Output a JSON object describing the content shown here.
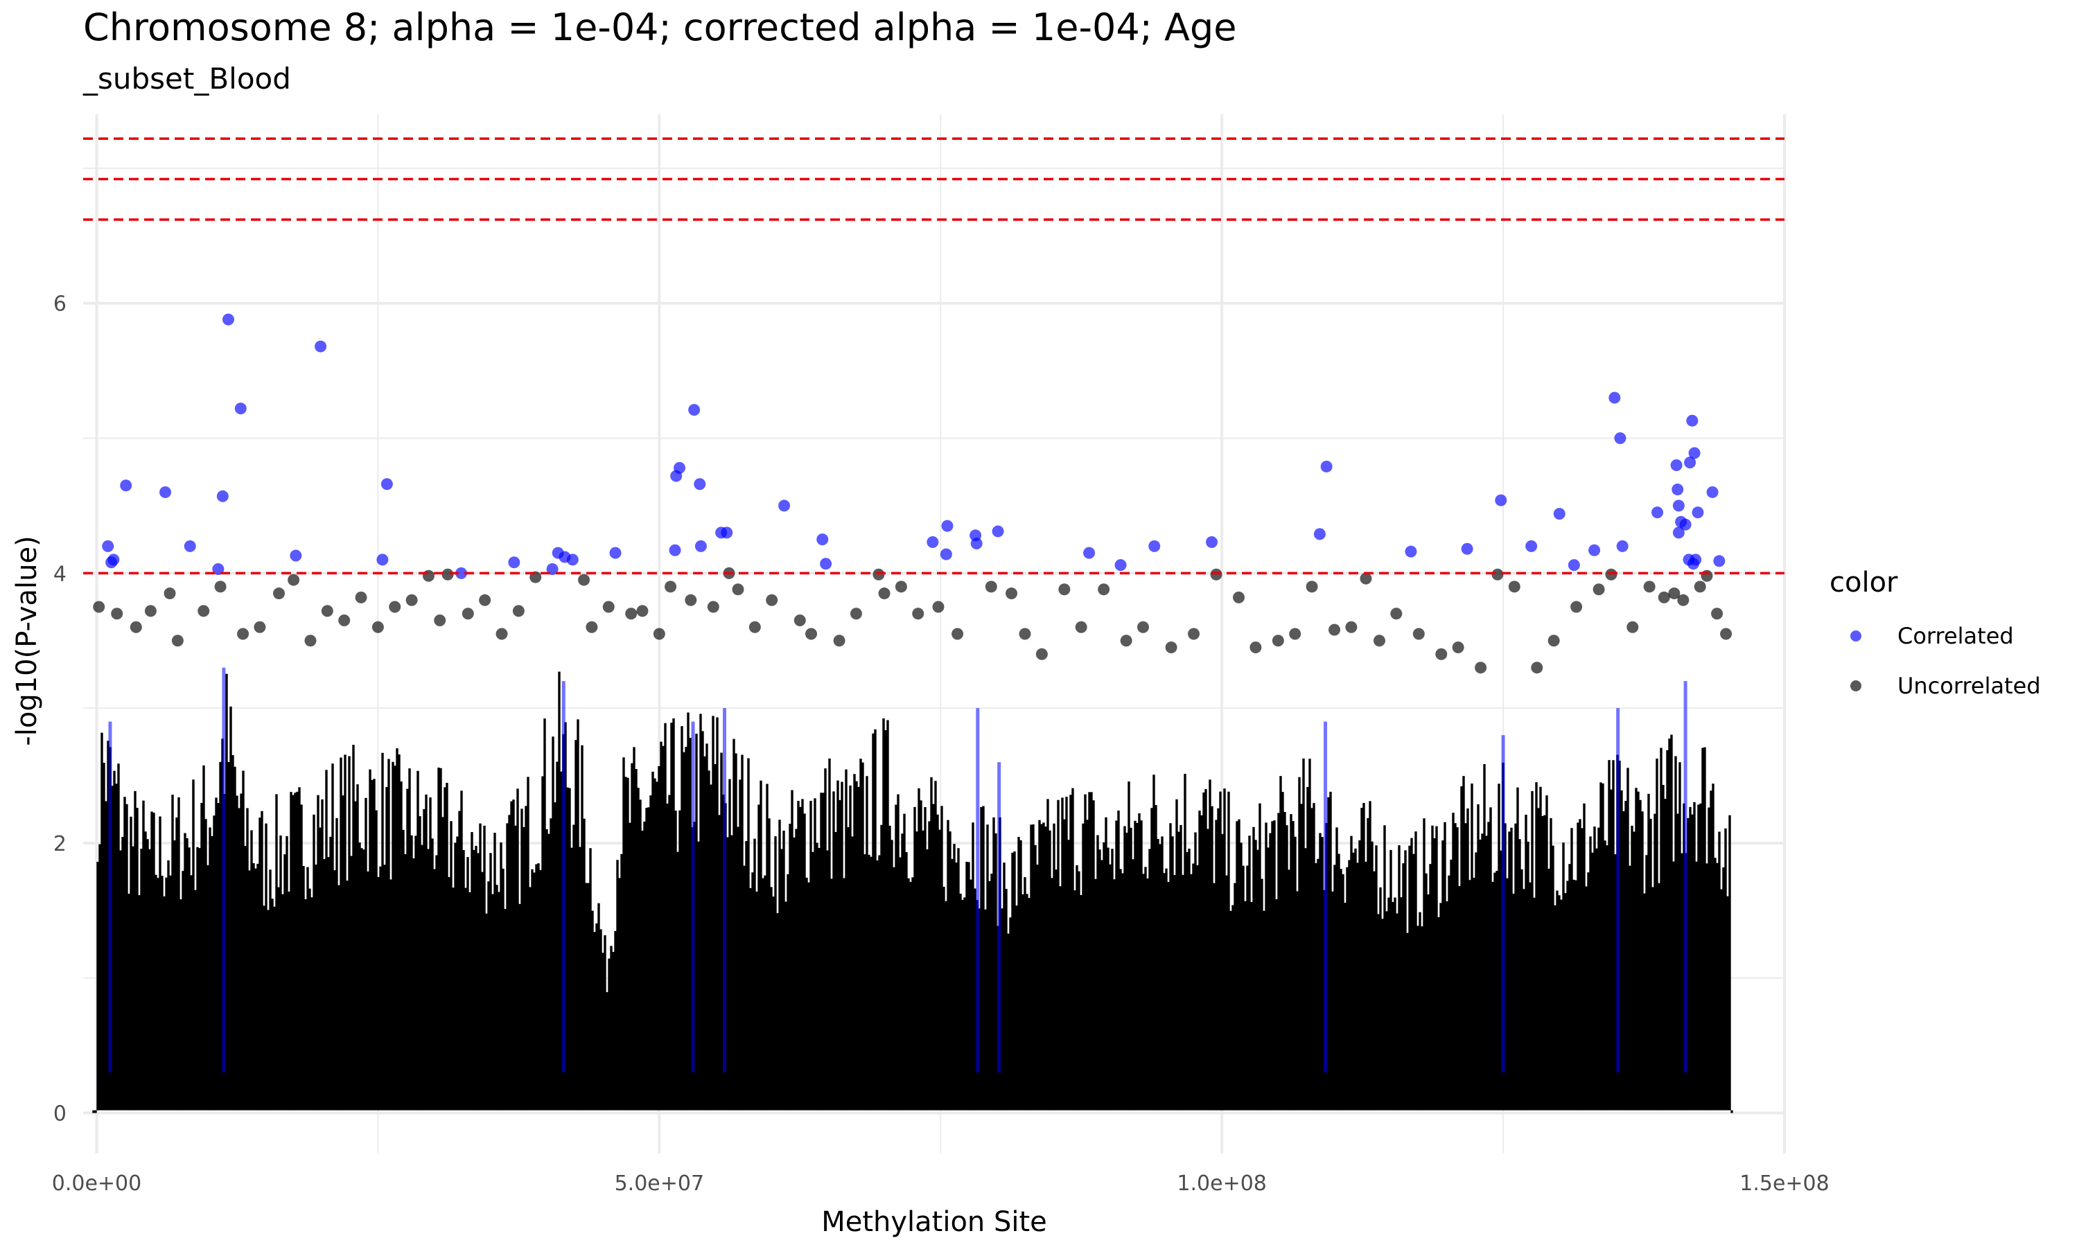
{
  "chart_data": {
    "type": "scatter",
    "title": "Chromosome 8; alpha = 1e-04; corrected alpha = 1e-04; Age",
    "subtitle": "_subset_Blood",
    "xlabel": "Methylation Site",
    "ylabel": "-log10(P-value)",
    "xlim": [
      -1200000.0,
      150000000.0
    ],
    "ylim": [
      -0.3,
      7.4
    ],
    "x_ticks": [
      0,
      50000000.0,
      100000000.0,
      150000000.0
    ],
    "x_tick_labels": [
      "0.0e+00",
      "5.0e+07",
      "1.0e+08",
      "1.5e+08"
    ],
    "y_ticks": [
      0,
      2,
      4,
      6
    ],
    "y_tick_labels": [
      "0",
      "2",
      "4",
      "6"
    ],
    "grid": true,
    "threshold_lines": [
      4.0,
      6.62,
      6.92,
      7.22
    ],
    "threshold_color": "#e8000b",
    "legend": {
      "title": "color",
      "placement": "right",
      "entries": [
        {
          "label": "Correlated",
          "color": "#0000ff"
        },
        {
          "label": "Uncorrelated",
          "color": "#000000"
        }
      ]
    },
    "series": [
      {
        "name": "Correlated",
        "color": "#0000ff",
        "points": [
          [
            1000000.0,
            4.2
          ],
          [
            1300000.0,
            4.08
          ],
          [
            1500000.0,
            4.1
          ],
          [
            2600000.0,
            4.65
          ],
          [
            6100000.0,
            4.6
          ],
          [
            8300000.0,
            4.2
          ],
          [
            10800000.0,
            4.03
          ],
          [
            11200000.0,
            4.57
          ],
          [
            11700000.0,
            5.88
          ],
          [
            12800000.0,
            5.22
          ],
          [
            17700000.0,
            4.13
          ],
          [
            19900000.0,
            5.68
          ],
          [
            25400000.0,
            4.1
          ],
          [
            25800000.0,
            4.66
          ],
          [
            32400000.0,
            4.0
          ],
          [
            37100000.0,
            4.08
          ],
          [
            40500000.0,
            4.03
          ],
          [
            41000000.0,
            4.15
          ],
          [
            41600000.0,
            4.12
          ],
          [
            42300000.0,
            4.1
          ],
          [
            46100000.0,
            4.15
          ],
          [
            51500000.0,
            4.72
          ],
          [
            51800000.0,
            4.78
          ],
          [
            51400000.0,
            4.17
          ],
          [
            53100000.0,
            5.21
          ],
          [
            53600000.0,
            4.66
          ],
          [
            53700000.0,
            4.2
          ],
          [
            55500000.0,
            4.3
          ],
          [
            56000000.0,
            4.3
          ],
          [
            61100000.0,
            4.5
          ],
          [
            64500000.0,
            4.25
          ],
          [
            64800000.0,
            4.07
          ],
          [
            74300000.0,
            4.23
          ],
          [
            75500000.0,
            4.14
          ],
          [
            75600000.0,
            4.35
          ],
          [
            78100000.0,
            4.28
          ],
          [
            78200000.0,
            4.22
          ],
          [
            80100000.0,
            4.31
          ],
          [
            88200000.0,
            4.15
          ],
          [
            91000000.0,
            4.06
          ],
          [
            94000000.0,
            4.2
          ],
          [
            99100000.0,
            4.23
          ],
          [
            108700000.0,
            4.29
          ],
          [
            109300000.0,
            4.79
          ],
          [
            116800000.0,
            4.16
          ],
          [
            121800000.0,
            4.18
          ],
          [
            124800000.0,
            4.54
          ],
          [
            127500000.0,
            4.2
          ],
          [
            130000000.0,
            4.44
          ],
          [
            131300000.0,
            4.06
          ],
          [
            133100000.0,
            4.17
          ],
          [
            134900000.0,
            5.3
          ],
          [
            135400000.0,
            5.0
          ],
          [
            135600000.0,
            4.2
          ],
          [
            138700000.0,
            4.45
          ],
          [
            140400000.0,
            4.8
          ],
          [
            140500000.0,
            4.62
          ],
          [
            140600000.0,
            4.5
          ],
          [
            140800000.0,
            4.38
          ],
          [
            141200000.0,
            4.36
          ],
          [
            141600000.0,
            4.82
          ],
          [
            141800000.0,
            5.13
          ],
          [
            142000000.0,
            4.89
          ],
          [
            142300000.0,
            4.45
          ],
          [
            141500000.0,
            4.1
          ],
          [
            141900000.0,
            4.07
          ],
          [
            142100000.0,
            4.1
          ],
          [
            143600000.0,
            4.6
          ],
          [
            144200000.0,
            4.09
          ],
          [
            140600000.0,
            4.3
          ]
        ]
      },
      {
        "name": "Uncorrelated",
        "color": "#000000",
        "points": [
          [
            200000.0,
            3.75
          ],
          [
            1800000.0,
            3.7
          ],
          [
            3500000.0,
            3.6
          ],
          [
            4800000.0,
            3.72
          ],
          [
            6500000.0,
            3.85
          ],
          [
            7200000.0,
            3.5
          ],
          [
            9500000.0,
            3.72
          ],
          [
            11000000.0,
            3.9
          ],
          [
            13000000.0,
            3.55
          ],
          [
            14500000.0,
            3.6
          ],
          [
            16200000.0,
            3.85
          ],
          [
            17500000.0,
            3.95
          ],
          [
            19000000.0,
            3.5
          ],
          [
            20500000.0,
            3.72
          ],
          [
            22000000.0,
            3.65
          ],
          [
            23500000.0,
            3.82
          ],
          [
            25000000.0,
            3.6
          ],
          [
            26500000.0,
            3.75
          ],
          [
            28000000.0,
            3.8
          ],
          [
            29500000.0,
            3.98
          ],
          [
            30500000.0,
            3.65
          ],
          [
            31200000.0,
            3.99
          ],
          [
            33000000.0,
            3.7
          ],
          [
            34500000.0,
            3.8
          ],
          [
            36000000.0,
            3.55
          ],
          [
            37500000.0,
            3.72
          ],
          [
            39000000.0,
            3.97
          ],
          [
            43300000.0,
            3.95
          ],
          [
            44000000.0,
            3.6
          ],
          [
            45500000.0,
            3.75
          ],
          [
            47500000.0,
            3.7
          ],
          [
            48500000.0,
            3.72
          ],
          [
            50000000.0,
            3.55
          ],
          [
            51000000.0,
            3.9
          ],
          [
            52800000.0,
            3.8
          ],
          [
            54800000.0,
            3.75
          ],
          [
            56200000.0,
            4.0
          ],
          [
            57000000.0,
            3.88
          ],
          [
            58500000.0,
            3.6
          ],
          [
            60000000.0,
            3.8
          ],
          [
            62500000.0,
            3.65
          ],
          [
            63500000.0,
            3.55
          ],
          [
            66000000.0,
            3.5
          ],
          [
            67500000.0,
            3.7
          ],
          [
            69500000.0,
            3.99
          ],
          [
            70000000.0,
            3.85
          ],
          [
            71500000.0,
            3.9
          ],
          [
            73000000.0,
            3.7
          ],
          [
            74800000.0,
            3.75
          ],
          [
            76500000.0,
            3.55
          ],
          [
            79500000.0,
            3.9
          ],
          [
            81300000.0,
            3.85
          ],
          [
            82500000.0,
            3.55
          ],
          [
            84000000.0,
            3.4
          ],
          [
            86000000.0,
            3.88
          ],
          [
            87500000.0,
            3.6
          ],
          [
            89500000.0,
            3.88
          ],
          [
            91500000.0,
            3.5
          ],
          [
            93000000.0,
            3.6
          ],
          [
            95500000.0,
            3.45
          ],
          [
            97500000.0,
            3.55
          ],
          [
            99500000.0,
            3.99
          ],
          [
            101500000.0,
            3.82
          ],
          [
            103000000.0,
            3.45
          ],
          [
            105000000.0,
            3.5
          ],
          [
            106500000.0,
            3.55
          ],
          [
            108000000.0,
            3.9
          ],
          [
            110000000.0,
            3.58
          ],
          [
            111500000.0,
            3.6
          ],
          [
            112800000.0,
            3.96
          ],
          [
            114000000.0,
            3.5
          ],
          [
            115500000.0,
            3.7
          ],
          [
            117500000.0,
            3.55
          ],
          [
            119500000.0,
            3.4
          ],
          [
            121000000.0,
            3.45
          ],
          [
            123000000.0,
            3.3
          ],
          [
            124500000.0,
            3.99
          ],
          [
            126000000.0,
            3.9
          ],
          [
            128000000.0,
            3.3
          ],
          [
            129500000.0,
            3.5
          ],
          [
            131500000.0,
            3.75
          ],
          [
            133500000.0,
            3.88
          ],
          [
            134600000.0,
            3.99
          ],
          [
            136500000.0,
            3.6
          ],
          [
            138000000.0,
            3.9
          ],
          [
            139300000.0,
            3.82
          ],
          [
            140200000.0,
            3.85
          ],
          [
            141000000.0,
            3.8
          ],
          [
            142500000.0,
            3.9
          ],
          [
            143100000.0,
            3.98
          ],
          [
            144000000.0,
            3.7
          ],
          [
            144800000.0,
            3.55
          ]
        ]
      }
    ]
  }
}
